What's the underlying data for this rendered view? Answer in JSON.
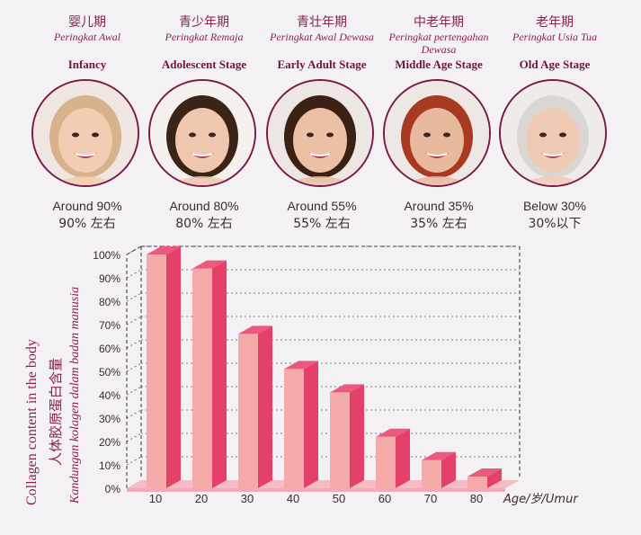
{
  "stages": [
    {
      "zh": "婴儿期",
      "my": "Peringkat Awal",
      "en": "Infancy",
      "pct_en": "Around 90%",
      "pct_zh": "90% 左右",
      "photo": "baby-photo",
      "skin": "#f1cdb3",
      "hair": "#d8b28a",
      "bg": "#efe6e2"
    },
    {
      "zh": "青少年期",
      "my": "Peringkat Remaja",
      "en": "Adolescent Stage",
      "pct_en": "Around 80%",
      "pct_zh": "80% 左右",
      "photo": "teen-photo",
      "skin": "#efc6ae",
      "hair": "#3a2418",
      "bg": "#f3f0ee"
    },
    {
      "zh": "青壮年期",
      "my": "Peringkat Awal Dewasa",
      "en": "Early Adult Stage",
      "pct_en": "Around 55%",
      "pct_zh": "55% 左右",
      "photo": "young-adult-photo",
      "skin": "#ebc0a4",
      "hair": "#3b2114",
      "bg": "#ece7e3"
    },
    {
      "zh": "中老年期",
      "my": "Peringkat pertengahan Dewasa",
      "en": "Middle Age Stage",
      "pct_en": "Around 35%",
      "pct_zh": "35% 左右",
      "photo": "middle-age-photo",
      "skin": "#e9b99d",
      "hair": "#a83a22",
      "bg": "#ede8e4"
    },
    {
      "zh": "老年期",
      "my": "Peringkat Usia Tua",
      "en": "Old Age Stage",
      "pct_en": "Below 30%",
      "pct_zh": "30%以下",
      "photo": "elderly-photo",
      "skin": "#efcbb6",
      "hair": "#d9d6d4",
      "bg": "#eeebe9"
    }
  ],
  "axis_titles": {
    "en": "Collagen content in the body",
    "zh": "人体胶原蛋白含量",
    "my": "Kandungan kolagen dalam badan manusia",
    "x": "Age/岁/Umur"
  },
  "colors": {
    "bar_front": "#f4aaa9",
    "bar_side": "#e3416a",
    "bar_top": "#ea5a7f",
    "floor": "#f6bcc4",
    "title": "#8b1f4f"
  },
  "chart_data": {
    "type": "bar",
    "categories": [
      "10",
      "20",
      "30",
      "40",
      "50",
      "60",
      "70",
      "80"
    ],
    "values": [
      100,
      94,
      66,
      51,
      41,
      22,
      12,
      5
    ],
    "y_ticks": [
      "0%",
      "10%",
      "20%",
      "30%",
      "40%",
      "50%",
      "60%",
      "70%",
      "80%",
      "90%",
      "100%"
    ],
    "ylim": [
      0,
      100
    ],
    "grid": true,
    "title": "",
    "xlabel": "Age/岁/Umur",
    "ylabel": "Collagen content in the body"
  }
}
